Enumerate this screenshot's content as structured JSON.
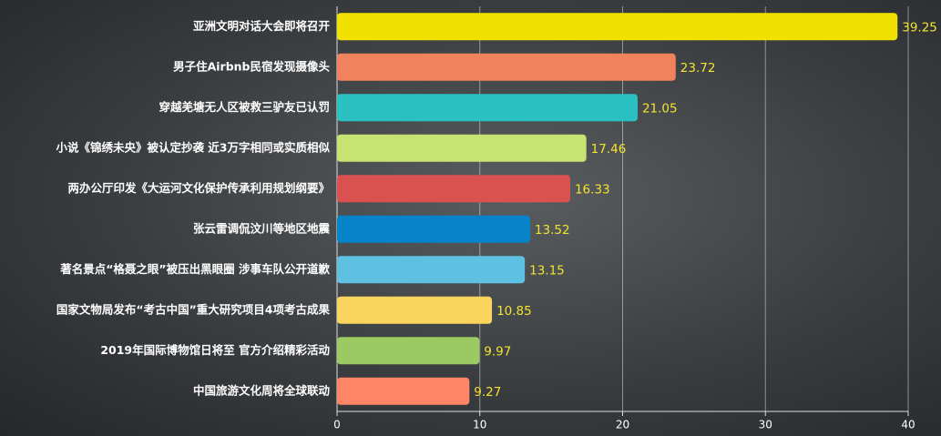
{
  "chart_data": {
    "type": "bar",
    "orientation": "horizontal",
    "categories": [
      "亚洲文明对话大会即将召开",
      "男子住Airbnb民宿发现摄像头",
      "穿越羌塘无人区被救三驴友已认罚",
      "小说《锦绣未央》被认定抄袭 近3万字相同或实质相似",
      "两办公厅印发《大运河文化保护传承利用规划纲要》",
      "张云雷调侃汶川等地区地震",
      "著名景点“格聂之眼”被压出黑眼圈 涉事车队公开道歉",
      "国家文物局发布“考古中国”重大研究项目4项考古成果",
      "2019年国际博物馆日将至 官方介绍精彩活动",
      "中国旅游文化周将全球联动"
    ],
    "values": [
      39.25,
      23.72,
      21.05,
      17.46,
      16.33,
      13.52,
      13.15,
      10.85,
      9.97,
      9.27
    ],
    "colors": [
      "#f2e100",
      "#f0825d",
      "#2bc1c3",
      "#c7e473",
      "#d9524f",
      "#0784c9",
      "#5fc1e2",
      "#f9d55f",
      "#9aca61",
      "#fe8565"
    ],
    "xlim": [
      0,
      40
    ],
    "xticks": [
      0,
      10,
      20,
      30,
      40
    ],
    "grid": true
  }
}
